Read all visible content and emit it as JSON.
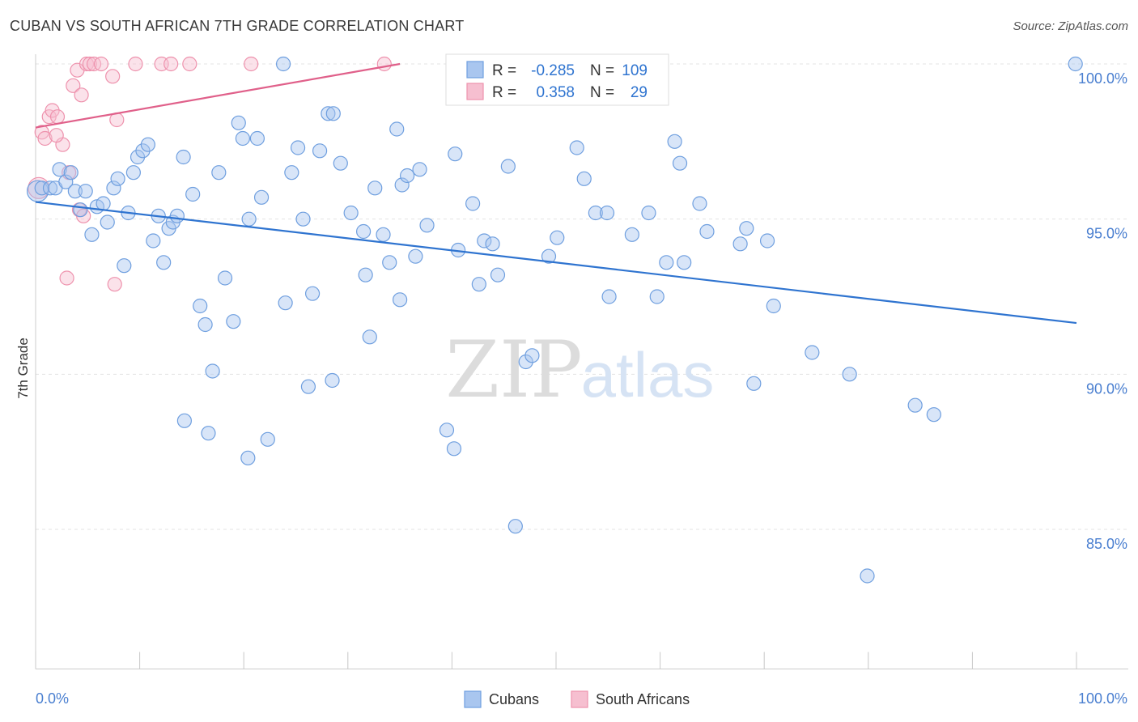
{
  "header": {
    "title": "CUBAN VS SOUTH AFRICAN 7TH GRADE CORRELATION CHART",
    "source": "Source: ZipAtlas.com"
  },
  "watermark": {
    "zip": "ZIP",
    "atlas": "atlas"
  },
  "colors": {
    "cubans_fill": "#a9c6ef",
    "cubans_stroke": "#6f9fdf",
    "cubans_line": "#2f74d0",
    "sa_fill": "#f6bfd0",
    "sa_stroke": "#ee92ad",
    "sa_line": "#e0608a",
    "tick_label": "#4a7fd0",
    "grid": "#e3e3e3"
  },
  "legend": {
    "rows": [
      {
        "r_label": "R =",
        "r_value": "-0.285",
        "n_label": "N =",
        "n_value": "109"
      },
      {
        "r_label": "R =",
        "r_value": "0.358",
        "n_label": "N =",
        "n_value": "29"
      }
    ]
  },
  "chart_data": {
    "type": "scatter",
    "title": "CUBAN VS SOUTH AFRICAN 7TH GRADE CORRELATION CHART",
    "xlabel": "",
    "ylabel": "7th Grade",
    "xlim": [
      0,
      100
    ],
    "ylim": [
      80.5,
      100.5
    ],
    "x_tick_labels": [
      "0.0%",
      "100.0%"
    ],
    "y_ticks": [
      85,
      90,
      95,
      100
    ],
    "y_tick_labels": [
      "85.0%",
      "90.0%",
      "95.0%",
      "100.0%"
    ],
    "grid": true,
    "legend_position": "bottom-center",
    "series": [
      {
        "name": "Cubans",
        "R": -0.285,
        "N": 109,
        "trend": {
          "x": [
            0,
            100
          ],
          "y": [
            95.55,
            91.65
          ]
        },
        "points": [
          [
            0.2,
            95.9
          ],
          [
            0.6,
            96.0
          ],
          [
            1.4,
            96.0
          ],
          [
            1.9,
            96.0
          ],
          [
            2.3,
            96.6
          ],
          [
            2.9,
            96.2
          ],
          [
            3.4,
            96.5
          ],
          [
            3.8,
            95.9
          ],
          [
            4.3,
            95.3
          ],
          [
            4.8,
            95.9
          ],
          [
            5.4,
            94.5
          ],
          [
            5.9,
            95.4
          ],
          [
            6.5,
            95.5
          ],
          [
            6.9,
            94.9
          ],
          [
            7.5,
            96.0
          ],
          [
            7.9,
            96.3
          ],
          [
            8.5,
            93.5
          ],
          [
            8.9,
            95.2
          ],
          [
            9.4,
            96.5
          ],
          [
            9.8,
            97.0
          ],
          [
            10.3,
            97.2
          ],
          [
            10.8,
            97.4
          ],
          [
            11.3,
            94.3
          ],
          [
            11.8,
            95.1
          ],
          [
            12.3,
            93.6
          ],
          [
            12.8,
            94.7
          ],
          [
            13.2,
            94.9
          ],
          [
            13.6,
            95.1
          ],
          [
            14.2,
            97.0
          ],
          [
            15.1,
            95.8
          ],
          [
            15.8,
            92.2
          ],
          [
            16.3,
            91.6
          ],
          [
            17.0,
            90.1
          ],
          [
            17.6,
            96.5
          ],
          [
            18.2,
            93.1
          ],
          [
            19.0,
            91.7
          ],
          [
            19.5,
            98.1
          ],
          [
            19.9,
            97.6
          ],
          [
            20.5,
            95.0
          ],
          [
            21.3,
            97.6
          ],
          [
            21.7,
            95.7
          ],
          [
            23.8,
            100.0
          ],
          [
            24.0,
            92.3
          ],
          [
            24.6,
            96.5
          ],
          [
            25.2,
            97.3
          ],
          [
            25.7,
            95.0
          ],
          [
            26.6,
            92.6
          ],
          [
            27.3,
            97.2
          ],
          [
            28.1,
            98.4
          ],
          [
            28.6,
            98.4
          ],
          [
            29.3,
            96.8
          ],
          [
            30.3,
            95.2
          ],
          [
            31.5,
            94.6
          ],
          [
            32.1,
            91.2
          ],
          [
            32.6,
            96.0
          ],
          [
            33.4,
            94.5
          ],
          [
            34.0,
            93.6
          ],
          [
            34.7,
            97.9
          ],
          [
            35.2,
            96.1
          ],
          [
            35.7,
            96.4
          ],
          [
            36.5,
            93.8
          ],
          [
            37.6,
            94.8
          ],
          [
            40.6,
            94.0
          ],
          [
            42.0,
            95.5
          ],
          [
            42.6,
            92.9
          ],
          [
            43.1,
            94.3
          ],
          [
            43.9,
            94.2
          ],
          [
            44.4,
            93.2
          ],
          [
            45.4,
            96.7
          ],
          [
            47.1,
            90.4
          ],
          [
            47.7,
            90.6
          ],
          [
            49.3,
            93.8
          ],
          [
            52.0,
            97.3
          ],
          [
            52.7,
            96.3
          ],
          [
            53.8,
            95.2
          ],
          [
            54.9,
            95.2
          ],
          [
            57.3,
            94.5
          ],
          [
            58.9,
            95.2
          ],
          [
            61.4,
            97.5
          ],
          [
            61.9,
            96.8
          ],
          [
            62.3,
            93.6
          ],
          [
            63.8,
            95.5
          ],
          [
            64.5,
            94.6
          ],
          [
            67.7,
            94.2
          ],
          [
            68.3,
            94.7
          ],
          [
            69.0,
            89.7
          ],
          [
            70.3,
            94.3
          ],
          [
            70.9,
            92.2
          ],
          [
            84.5,
            89.0
          ],
          [
            86.3,
            88.7
          ],
          [
            99.9,
            100.0
          ],
          [
            14.3,
            88.5
          ],
          [
            16.6,
            88.1
          ],
          [
            20.4,
            87.3
          ],
          [
            22.3,
            87.9
          ],
          [
            26.2,
            89.6
          ],
          [
            28.5,
            89.8
          ],
          [
            39.5,
            88.2
          ],
          [
            40.2,
            87.6
          ],
          [
            46.1,
            85.1
          ],
          [
            79.9,
            83.5
          ],
          [
            74.6,
            90.7
          ],
          [
            78.2,
            90.0
          ],
          [
            59.7,
            92.5
          ],
          [
            55.1,
            92.5
          ],
          [
            35.0,
            92.4
          ],
          [
            60.6,
            93.6
          ],
          [
            50.1,
            94.4
          ],
          [
            31.7,
            93.2
          ],
          [
            36.9,
            96.6
          ],
          [
            40.3,
            97.1
          ]
        ]
      },
      {
        "name": "South Africans",
        "R": 0.358,
        "N": 29,
        "trend": {
          "x": [
            0,
            35
          ],
          "y": [
            97.95,
            100.0
          ]
        },
        "points": [
          [
            0.3,
            96.0
          ],
          [
            0.6,
            97.8
          ],
          [
            0.9,
            97.6
          ],
          [
            1.3,
            98.3
          ],
          [
            1.6,
            98.5
          ],
          [
            2.1,
            98.3
          ],
          [
            2.6,
            97.4
          ],
          [
            3.2,
            96.5
          ],
          [
            3.6,
            99.3
          ],
          [
            4.0,
            99.8
          ],
          [
            4.4,
            99.0
          ],
          [
            4.9,
            100.0
          ],
          [
            5.2,
            100.0
          ],
          [
            5.6,
            100.0
          ],
          [
            6.3,
            100.0
          ],
          [
            7.4,
            99.6
          ],
          [
            7.8,
            98.2
          ],
          [
            9.6,
            100.0
          ],
          [
            12.1,
            100.0
          ],
          [
            13.0,
            100.0
          ],
          [
            14.8,
            100.0
          ],
          [
            20.7,
            100.0
          ],
          [
            33.5,
            100.0
          ],
          [
            58.1,
            100.0
          ],
          [
            4.2,
            95.3
          ],
          [
            4.6,
            95.1
          ],
          [
            3.0,
            93.1
          ],
          [
            7.6,
            92.9
          ],
          [
            2.0,
            97.7
          ]
        ]
      }
    ]
  },
  "bottom_legend": [
    {
      "label": "Cubans"
    },
    {
      "label": "South Africans"
    }
  ]
}
